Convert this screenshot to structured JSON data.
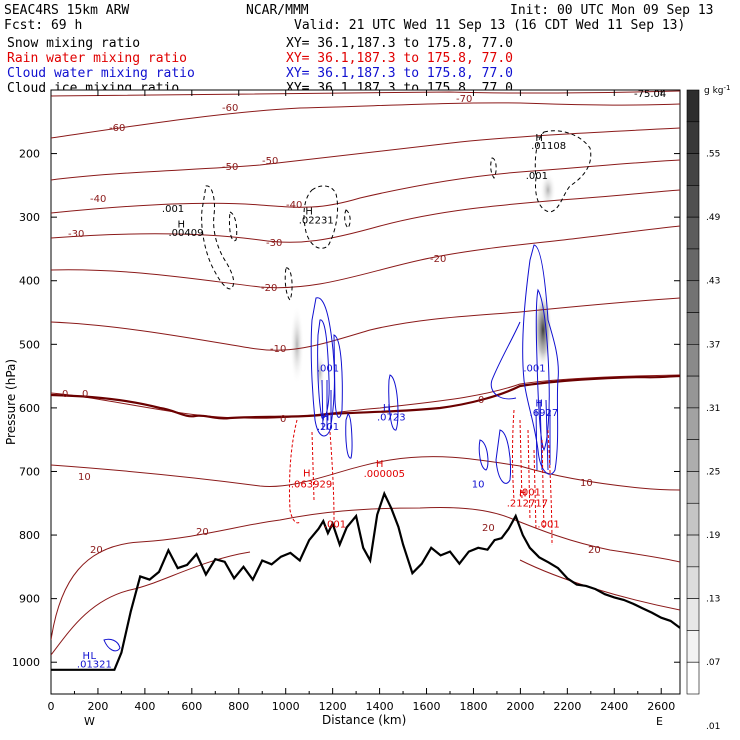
{
  "header": {
    "title_left": "SEAC4RS 15km ARW",
    "title_center": "NCAR/MMM",
    "init": "Init: 00 UTC Mon 09 Sep 13",
    "fcst": "Fcst:   69 h",
    "valid": "Valid: 21 UTC Wed 11 Sep 13 (16 CDT Wed 11 Sep 13)",
    "fields": [
      {
        "name": "Snow mixing ratio",
        "xy": "XY=  36.1,187.3 to 175.8, 77.0",
        "color": "#000000"
      },
      {
        "name": "Rain water mixing ratio",
        "xy": "XY=  36.1,187.3 to 175.8, 77.0",
        "color": "#e00000"
      },
      {
        "name": "Cloud water mixing ratio",
        "xy": "XY=  36.1,187.3 to 175.8, 77.0",
        "color": "#1010d0"
      },
      {
        "name": "Cloud ice mixing ratio",
        "xy": "XY=  36.1,187.3 to 175.8, 77.0",
        "color": "#000000"
      }
    ]
  },
  "chart_data": {
    "type": "cross-section",
    "xlabel": "Distance (km)",
    "ylabel": "Pressure (hPa)",
    "xlim": [
      0,
      2680
    ],
    "ylim": [
      1050,
      100
    ],
    "x_ticks": [
      0,
      200,
      400,
      600,
      800,
      1000,
      1200,
      1400,
      1600,
      1800,
      2000,
      2200,
      2400,
      2600
    ],
    "y_ticks": [
      200,
      300,
      400,
      500,
      600,
      700,
      800,
      900,
      1000
    ],
    "x_end_labels": [
      "W",
      "E"
    ],
    "colorbar": {
      "unit": "g kg",
      "unit_exponent": "-1",
      "labels": [
        ".55",
        ".49",
        ".43",
        ".37",
        ".31",
        ".25",
        ".19",
        ".13",
        ".07",
        ".01"
      ]
    },
    "terrain_surface": {
      "x": [
        0,
        270,
        300,
        340,
        380,
        420,
        460,
        500,
        540,
        580,
        620,
        660,
        700,
        740,
        780,
        820,
        860,
        900,
        940,
        980,
        1020,
        1060,
        1100,
        1140,
        1160,
        1180,
        1200,
        1230,
        1260,
        1300,
        1330,
        1360,
        1390,
        1420,
        1450,
        1480,
        1500,
        1540,
        1580,
        1620,
        1660,
        1700,
        1740,
        1780,
        1820,
        1860,
        1890,
        1920,
        1950,
        1980,
        2010,
        2040,
        2080,
        2120,
        2160,
        2200,
        2240,
        2280,
        2320,
        2360,
        2400,
        2440,
        2480,
        2520,
        2560,
        2600,
        2640,
        2680
      ],
      "p": [
        1012,
        1012,
        985,
        920,
        865,
        870,
        858,
        824,
        852,
        847,
        830,
        862,
        838,
        842,
        868,
        850,
        870,
        840,
        846,
        834,
        828,
        840,
        808,
        790,
        778,
        797,
        782,
        815,
        788,
        770,
        820,
        840,
        768,
        735,
        758,
        787,
        815,
        860,
        845,
        820,
        832,
        826,
        845,
        826,
        820,
        823,
        808,
        805,
        790,
        770,
        800,
        820,
        835,
        843,
        852,
        868,
        878,
        880,
        885,
        893,
        898,
        902,
        908,
        915,
        922,
        930,
        935,
        946
      ]
    },
    "temperature_contours": [
      {
        "label": "-75.04",
        "type": "min"
      },
      {
        "label": "-70"
      },
      {
        "label": "-60"
      },
      {
        "label": "-50"
      },
      {
        "label": "-40"
      },
      {
        "label": "-30"
      },
      {
        "label": "-20"
      },
      {
        "label": "-10"
      },
      {
        "label": "0"
      },
      {
        "label": "10"
      },
      {
        "label": "20"
      }
    ],
    "annotations": [
      {
        "text": "H",
        "x": 555,
        "p": 316,
        "color": "#000000"
      },
      {
        "text": ".00409",
        "x": 575,
        "p": 330,
        "color": "#000000"
      },
      {
        "text": ".001",
        "x": 520,
        "p": 292,
        "color": "#000000"
      },
      {
        "text": "H",
        "x": 1100,
        "p": 296,
        "color": "#000000"
      },
      {
        "text": ".02231",
        "x": 1130,
        "p": 310,
        "color": "#000000"
      },
      {
        "text": "H",
        "x": 2080,
        "p": 180,
        "color": "#000000"
      },
      {
        "text": ".01108",
        "x": 2120,
        "p": 193,
        "color": "#000000"
      },
      {
        "text": ".001",
        "x": 2070,
        "p": 240,
        "color": "#000000"
      },
      {
        "text": ".001",
        "x": 1180,
        "p": 543,
        "color": "#1010d0"
      },
      {
        "text": "H",
        "x": 1170,
        "p": 620,
        "color": "#1010d0"
      },
      {
        "text": ".201",
        "x": 1180,
        "p": 635,
        "color": "#1010d0"
      },
      {
        "text": "H",
        "x": 1430,
        "p": 605,
        "color": "#1010d0"
      },
      {
        "text": ".0723",
        "x": 1450,
        "p": 620,
        "color": "#1010d0"
      },
      {
        "text": ".001",
        "x": 2060,
        "p": 543,
        "color": "#1010d0"
      },
      {
        "text": "H",
        "x": 2080,
        "p": 598,
        "color": "#1010d0"
      },
      {
        "text": ".6927",
        "x": 2100,
        "p": 613,
        "color": "#1010d0"
      },
      {
        "text": "H",
        "x": 1090,
        "p": 708,
        "color": "#e00000"
      },
      {
        "text": ".063929",
        "x": 1110,
        "p": 725,
        "color": "#e00000"
      },
      {
        "text": "H",
        "x": 1400,
        "p": 693,
        "color": "#e00000"
      },
      {
        "text": ".000005",
        "x": 1420,
        "p": 709,
        "color": "#e00000"
      },
      {
        "text": "H",
        "x": 2010,
        "p": 739,
        "color": "#e00000"
      },
      {
        "text": ".212717",
        "x": 2030,
        "p": 755,
        "color": "#e00000"
      },
      {
        "text": ".001",
        "x": 2040,
        "p": 738,
        "color": "#e00000"
      },
      {
        "text": ".001",
        "x": 1210,
        "p": 788,
        "color": "#e00000"
      },
      {
        "text": ".001",
        "x": 2120,
        "p": 788,
        "color": "#e00000"
      },
      {
        "text": "H",
        "x": 150,
        "p": 995,
        "color": "#1010d0"
      },
      {
        "text": "L",
        "x": 180,
        "p": 995,
        "color": "#1010d0"
      },
      {
        "text": ".01321",
        "x": 185,
        "p": 1008,
        "color": "#1010d0"
      },
      {
        "text": "10",
        "x": 1820,
        "p": 725,
        "color": "#1010d0"
      }
    ]
  }
}
